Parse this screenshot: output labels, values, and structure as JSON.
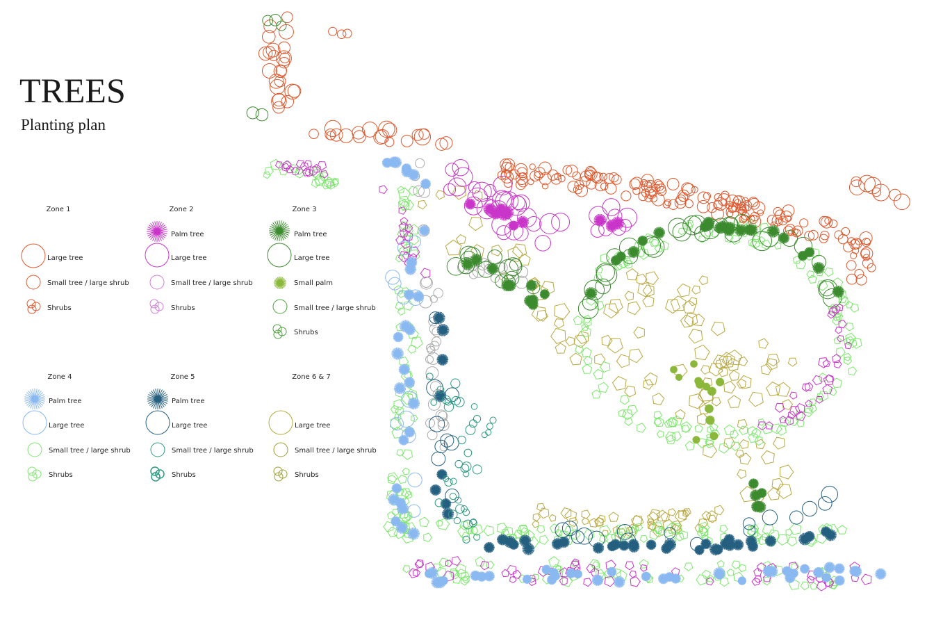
{
  "header": {
    "title": "TREES",
    "subtitle": "Planting plan"
  },
  "legend": {
    "zones": [
      {
        "name": "Zone 1",
        "items": [
          "Large tree",
          "Small tree / large shrub",
          "Shrubs"
        ]
      },
      {
        "name": "Zone 2",
        "items": [
          "Palm tree",
          "Large tree",
          "Small tree / large shrub",
          "Shrubs"
        ]
      },
      {
        "name": "Zone 3",
        "items": [
          "Palm tree",
          "Large tree",
          "Small palm",
          "Small tree / large shrub",
          "Shrubs"
        ]
      },
      {
        "name": "Zone 4",
        "items": [
          "Palm tree",
          "Large tree",
          "Small tree / large shrub",
          "Shrubs"
        ]
      },
      {
        "name": "Zone 5",
        "items": [
          "Palm tree",
          "Large tree",
          "Small tree / large shrub",
          "Shrubs"
        ]
      },
      {
        "name": "Zone 6 & 7",
        "items": [
          "Large tree",
          "Small tree / large shrub",
          "Shrubs"
        ]
      }
    ]
  }
}
